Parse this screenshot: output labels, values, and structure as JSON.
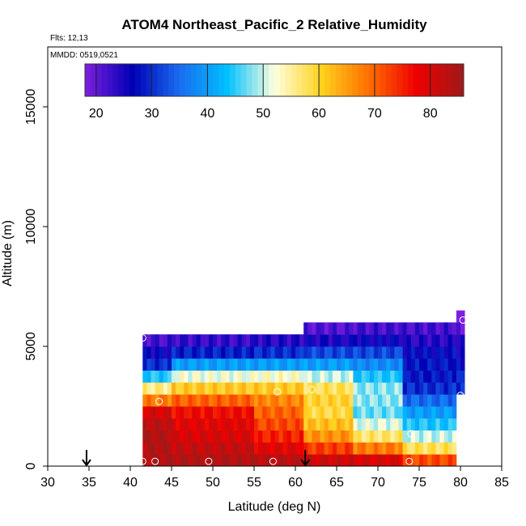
{
  "chart_data": {
    "type": "heatmap",
    "title": "ATOM4 Northeast_Pacific_2 Relative_Humidity",
    "subtitle_lines": [
      "Flts: 12,13",
      "MMDD: 0519,0521"
    ],
    "xlabel": "Latitude (deg N)",
    "ylabel": "Altitude (m)",
    "xlim": [
      30,
      85
    ],
    "ylim": [
      0,
      17500
    ],
    "xticks": [
      30,
      35,
      40,
      45,
      50,
      55,
      60,
      65,
      70,
      75,
      80,
      85
    ],
    "yticks": [
      0,
      5000,
      10000,
      15000
    ],
    "colorbar": {
      "range": [
        18,
        86
      ],
      "ticks": [
        20,
        30,
        40,
        50,
        60,
        70,
        80
      ],
      "colors": [
        "#7f1fe0",
        "#0000b4",
        "#1a6cf0",
        "#00c0ff",
        "#ffffe0",
        "#ffd21e",
        "#ff6e00",
        "#ee0000",
        "#9e1a1a"
      ]
    },
    "cell_height_m": 500,
    "column_width_deg": 0.5,
    "series": [
      {
        "name": "",
        "segments": [
          {
            "lat": [
              41.5,
              45.0
            ],
            "alt": [
              0,
              500,
              1000,
              1500,
              2000,
              2500,
              3000,
              3500,
              4000,
              4500,
              5000
            ],
            "rh": [
              84,
              84,
              84,
              83,
              80,
              68,
              56,
              44,
              30,
              26,
              22
            ]
          },
          {
            "lat": [
              45.0,
              55.0
            ],
            "alt": [
              0,
              500,
              1000,
              1500,
              2000,
              2500,
              3000,
              3500,
              4000,
              4500,
              5000
            ],
            "rh": [
              84,
              82,
              80,
              79,
              77,
              70,
              61,
              52,
              40,
              29,
              23
            ]
          },
          {
            "lat": [
              55.0,
              61.0
            ],
            "alt": [
              0,
              500,
              1000,
              1500,
              2000,
              2500,
              3000,
              3500,
              4000,
              4500,
              5000
            ],
            "rh": [
              83,
              79,
              75,
              72,
              70,
              67,
              61,
              53,
              40,
              30,
              24
            ]
          },
          {
            "lat": [
              61.0,
              67.0
            ],
            "alt": [
              0,
              500,
              1000,
              1500,
              2000,
              2500,
              3000,
              3500,
              4000,
              4500,
              5000,
              5500
            ],
            "rh": [
              81,
              73,
              66,
              62,
              59,
              60,
              58,
              50,
              40,
              32,
              25,
              21
            ]
          },
          {
            "lat": [
              67.0,
              73.0
            ],
            "alt": [
              0,
              500,
              1000,
              1500,
              2000,
              2500,
              3000,
              3500,
              4000,
              4500,
              5000,
              5500
            ],
            "rh": [
              80,
              68,
              57,
              51,
              47,
              48,
              48,
              44,
              38,
              32,
              26,
              22
            ]
          },
          {
            "lat": [
              73.0,
              79.5
            ],
            "alt": [
              0,
              500,
              1000,
              1500,
              2000,
              2500,
              3000,
              3500,
              4000,
              4500,
              5000,
              5500
            ],
            "rh": [
              72,
              58,
              50,
              44,
              40,
              35,
              30,
              28,
              28,
              27,
              24,
              22
            ]
          },
          {
            "lat": [
              79.5,
              80.5
            ],
            "alt": [
              3000,
              3500,
              4000,
              4500,
              5000,
              5500,
              6000
            ],
            "rh": [
              30,
              29,
              28,
              26,
              23,
              20,
              19
            ]
          }
        ]
      }
    ],
    "sample_points": [
      {
        "lat": 41.5,
        "alt": 5350
      },
      {
        "lat": 41.5,
        "alt": 200
      },
      {
        "lat": 43.0,
        "alt": 200
      },
      {
        "lat": 43.5,
        "alt": 2700
      },
      {
        "lat": 49.5,
        "alt": 200
      },
      {
        "lat": 57.3,
        "alt": 200
      },
      {
        "lat": 57.8,
        "alt": 3100
      },
      {
        "lat": 62.0,
        "alt": 3200
      },
      {
        "lat": 73.8,
        "alt": 200
      },
      {
        "lat": 74.0,
        "alt": 1350
      },
      {
        "lat": 80.0,
        "alt": 2950
      },
      {
        "lat": 80.3,
        "alt": 6100
      }
    ],
    "arrows": [
      {
        "lat": 34.7,
        "alt": 0
      },
      {
        "lat": 61.2,
        "alt": 0
      }
    ]
  }
}
